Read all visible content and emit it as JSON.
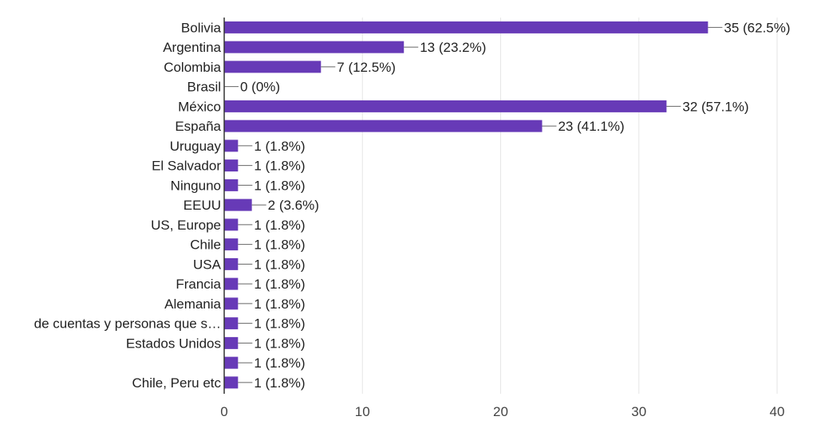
{
  "chart_data": {
    "type": "bar",
    "orientation": "horizontal",
    "categories": [
      "Bolivia",
      "Argentina",
      "Colombia",
      "Brasil",
      "México",
      "España",
      "Uruguay",
      "El Salvador",
      "Ninguno",
      "EEUU",
      "US, Europe",
      "Chile",
      "USA",
      "Francia",
      "Alemania",
      "de cuentas y personas que s…",
      "Estados Unidos",
      "",
      "Chile, Peru etc"
    ],
    "values": [
      35,
      13,
      7,
      0,
      32,
      23,
      1,
      1,
      1,
      2,
      1,
      1,
      1,
      1,
      1,
      1,
      1,
      1,
      1
    ],
    "data_labels": [
      "35 (62.5%)",
      "13 (23.2%)",
      "7 (12.5%)",
      "0 (0%)",
      "32 (57.1%)",
      "23 (41.1%)",
      "1 (1.8%)",
      "1 (1.8%)",
      "1 (1.8%)",
      "2 (3.6%)",
      "1 (1.8%)",
      "1 (1.8%)",
      "1 (1.8%)",
      "1 (1.8%)",
      "1 (1.8%)",
      "1 (1.8%)",
      "1 (1.8%)",
      "1 (1.8%)",
      "1 (1.8%)"
    ],
    "xlim": [
      0,
      40
    ],
    "x_ticks": [
      0,
      10,
      20,
      30,
      40
    ],
    "grid": true,
    "bar_color": "#673ab7",
    "grid_color": "#e6e6e6",
    "axis_color": "#333333"
  }
}
